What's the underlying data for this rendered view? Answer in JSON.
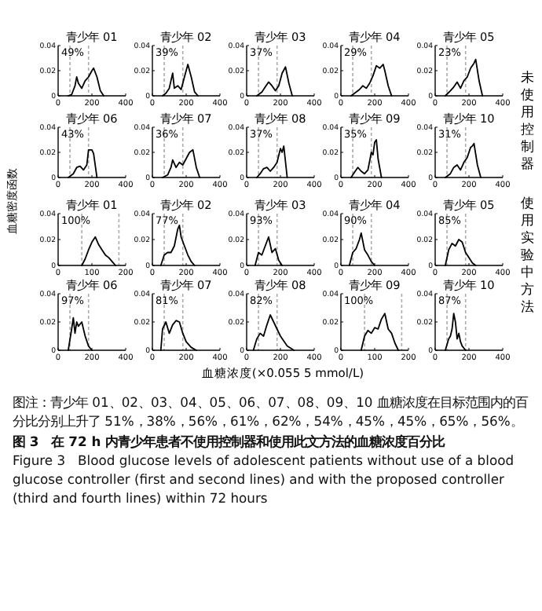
{
  "chart_data": [
    {
      "type": "line",
      "title": "青少年 01",
      "xlim": [
        0,
        400
      ],
      "xticks": [
        0,
        200,
        400
      ],
      "ylim": [
        0,
        0.04
      ],
      "yticks": [
        0,
        0.02,
        0.04
      ],
      "ref_lines": [
        {
          "axis": "x",
          "value": 70,
          "color": "#aaaaaa",
          "line_style": "dashed"
        },
        {
          "axis": "x",
          "value": 180,
          "color": "#aaaaaa",
          "line_style": "dashed"
        }
      ],
      "annotations": [
        "49%"
      ],
      "series": [
        {
          "color": "#000000",
          "x": [
            60,
            80,
            100,
            110,
            120,
            140,
            160,
            180,
            200,
            210,
            230,
            250,
            270
          ],
          "values": [
            0,
            0.001,
            0.008,
            0.015,
            0.01,
            0.006,
            0.012,
            0.015,
            0.02,
            0.022,
            0.015,
            0.004,
            0
          ]
        }
      ]
    },
    {
      "type": "line",
      "title": "青少年 02",
      "xlim": [
        0,
        400
      ],
      "xticks": [
        0,
        200,
        400
      ],
      "ylim": [
        0,
        0.04
      ],
      "yticks": [
        0,
        0.02,
        0.04
      ],
      "ref_lines": [
        {
          "axis": "x",
          "value": 70,
          "color": "#aaaaaa",
          "line_style": "dashed"
        },
        {
          "axis": "x",
          "value": 180,
          "color": "#aaaaaa",
          "line_style": "dashed"
        }
      ],
      "annotations": [
        "39%"
      ],
      "series": [
        {
          "color": "#000000",
          "x": [
            60,
            80,
            100,
            120,
            130,
            150,
            170,
            190,
            210,
            230,
            250,
            270
          ],
          "values": [
            0,
            0.002,
            0.006,
            0.018,
            0.006,
            0.008,
            0.005,
            0.015,
            0.025,
            0.015,
            0.003,
            0
          ]
        }
      ]
    },
    {
      "type": "line",
      "title": "青少年 03",
      "xlim": [
        0,
        400
      ],
      "xticks": [
        0,
        200,
        400
      ],
      "ylim": [
        0,
        0.04
      ],
      "yticks": [
        0,
        0.02,
        0.04
      ],
      "ref_lines": [
        {
          "axis": "x",
          "value": 70,
          "color": "#aaaaaa",
          "line_style": "dashed"
        },
        {
          "axis": "x",
          "value": 180,
          "color": "#aaaaaa",
          "line_style": "dashed"
        }
      ],
      "annotations": [
        "37%"
      ],
      "series": [
        {
          "color": "#000000",
          "x": [
            60,
            90,
            110,
            130,
            150,
            170,
            190,
            210,
            230,
            250,
            270
          ],
          "values": [
            0,
            0.003,
            0.007,
            0.011,
            0.008,
            0.004,
            0.008,
            0.018,
            0.023,
            0.01,
            0
          ]
        }
      ]
    },
    {
      "type": "line",
      "title": "青少年 04",
      "xlim": [
        0,
        400
      ],
      "xticks": [
        0,
        200,
        400
      ],
      "ylim": [
        0,
        0.04
      ],
      "yticks": [
        0,
        0.02,
        0.04
      ],
      "ref_lines": [
        {
          "axis": "x",
          "value": 70,
          "color": "#aaaaaa",
          "line_style": "dashed"
        },
        {
          "axis": "x",
          "value": 180,
          "color": "#aaaaaa",
          "line_style": "dashed"
        }
      ],
      "annotations": [
        "29%"
      ],
      "series": [
        {
          "color": "#000000",
          "x": [
            60,
            90,
            110,
            130,
            150,
            170,
            190,
            210,
            230,
            250,
            260,
            280,
            300
          ],
          "values": [
            0,
            0.003,
            0.005,
            0.008,
            0.006,
            0.01,
            0.016,
            0.024,
            0.022,
            0.025,
            0.02,
            0.008,
            0
          ]
        }
      ]
    },
    {
      "type": "line",
      "title": "青少年 05",
      "xlim": [
        0,
        400
      ],
      "xticks": [
        0,
        200,
        400
      ],
      "ylim": [
        0,
        0.04
      ],
      "yticks": [
        0,
        0.02,
        0.04
      ],
      "ref_lines": [
        {
          "axis": "x",
          "value": 70,
          "color": "#aaaaaa",
          "line_style": "dashed"
        },
        {
          "axis": "x",
          "value": 180,
          "color": "#aaaaaa",
          "line_style": "dashed"
        }
      ],
      "annotations": [
        "23%"
      ],
      "series": [
        {
          "color": "#000000",
          "x": [
            60,
            90,
            110,
            130,
            150,
            170,
            190,
            210,
            230,
            240,
            260,
            280
          ],
          "values": [
            0,
            0.004,
            0.007,
            0.011,
            0.006,
            0.012,
            0.015,
            0.022,
            0.026,
            0.029,
            0.012,
            0
          ]
        }
      ]
    },
    {
      "type": "line",
      "title": "青少年 06",
      "xlim": [
        0,
        400
      ],
      "xticks": [
        0,
        200,
        400
      ],
      "ylim": [
        0,
        0.04
      ],
      "yticks": [
        0,
        0.02,
        0.04
      ],
      "ref_lines": [
        {
          "axis": "x",
          "value": 70,
          "color": "#aaaaaa",
          "line_style": "dashed"
        },
        {
          "axis": "x",
          "value": 180,
          "color": "#aaaaaa",
          "line_style": "dashed"
        }
      ],
      "annotations": [
        "43%"
      ],
      "series": [
        {
          "color": "#000000",
          "x": [
            60,
            90,
            110,
            130,
            150,
            170,
            180,
            200,
            210,
            230
          ],
          "values": [
            0,
            0.003,
            0.008,
            0.009,
            0.006,
            0.01,
            0.022,
            0.022,
            0.019,
            0
          ]
        }
      ]
    },
    {
      "type": "line",
      "title": "青少年 07",
      "xlim": [
        0,
        400
      ],
      "xticks": [
        0,
        200,
        400
      ],
      "ylim": [
        0,
        0.04
      ],
      "yticks": [
        0,
        0.02,
        0.04
      ],
      "ref_lines": [
        {
          "axis": "x",
          "value": 70,
          "color": "#aaaaaa",
          "line_style": "dashed"
        },
        {
          "axis": "x",
          "value": 180,
          "color": "#aaaaaa",
          "line_style": "dashed"
        }
      ],
      "annotations": [
        "36%"
      ],
      "series": [
        {
          "color": "#000000",
          "x": [
            60,
            90,
            110,
            120,
            140,
            160,
            180,
            200,
            220,
            240,
            260,
            280
          ],
          "values": [
            0,
            0.002,
            0.008,
            0.014,
            0.008,
            0.012,
            0.01,
            0.015,
            0.02,
            0.022,
            0.008,
            0
          ]
        }
      ]
    },
    {
      "type": "line",
      "title": "青少年 08",
      "xlim": [
        0,
        400
      ],
      "xticks": [
        0,
        200,
        400
      ],
      "ylim": [
        0,
        0.04
      ],
      "yticks": [
        0,
        0.02,
        0.04
      ],
      "ref_lines": [
        {
          "axis": "x",
          "value": 70,
          "color": "#aaaaaa",
          "line_style": "dashed"
        },
        {
          "axis": "x",
          "value": 180,
          "color": "#aaaaaa",
          "line_style": "dashed"
        }
      ],
      "annotations": [
        "37%"
      ],
      "series": [
        {
          "color": "#000000",
          "x": [
            60,
            80,
            100,
            120,
            140,
            160,
            180,
            200,
            210,
            220,
            240
          ],
          "values": [
            0,
            0.003,
            0.007,
            0.008,
            0.005,
            0.008,
            0.012,
            0.023,
            0.02,
            0.025,
            0
          ]
        }
      ]
    },
    {
      "type": "line",
      "title": "青少年 09",
      "xlim": [
        0,
        400
      ],
      "xticks": [
        0,
        200,
        400
      ],
      "ylim": [
        0,
        0.04
      ],
      "yticks": [
        0,
        0.02,
        0.04
      ],
      "ref_lines": [
        {
          "axis": "x",
          "value": 70,
          "color": "#aaaaaa",
          "line_style": "dashed"
        },
        {
          "axis": "x",
          "value": 180,
          "color": "#aaaaaa",
          "line_style": "dashed"
        }
      ],
      "annotations": [
        "35%"
      ],
      "series": [
        {
          "color": "#000000",
          "x": [
            60,
            80,
            100,
            120,
            140,
            160,
            180,
            190,
            200,
            210,
            220,
            240
          ],
          "values": [
            0,
            0.004,
            0.008,
            0.005,
            0.003,
            0.006,
            0.02,
            0.018,
            0.028,
            0.03,
            0.015,
            0
          ]
        }
      ]
    },
    {
      "type": "line",
      "title": "青少年 10",
      "xlim": [
        0,
        400
      ],
      "xticks": [
        0,
        200,
        400
      ],
      "ylim": [
        0,
        0.04
      ],
      "yticks": [
        0,
        0.02,
        0.04
      ],
      "ref_lines": [
        {
          "axis": "x",
          "value": 70,
          "color": "#aaaaaa",
          "line_style": "dashed"
        },
        {
          "axis": "x",
          "value": 180,
          "color": "#aaaaaa",
          "line_style": "dashed"
        }
      ],
      "annotations": [
        "31%"
      ],
      "series": [
        {
          "color": "#000000",
          "x": [
            60,
            90,
            110,
            130,
            150,
            170,
            190,
            210,
            220,
            230,
            250,
            270
          ],
          "values": [
            0,
            0.003,
            0.008,
            0.01,
            0.006,
            0.012,
            0.016,
            0.024,
            0.025,
            0.027,
            0.01,
            0
          ]
        }
      ]
    },
    {
      "type": "line",
      "title": "青少年 01",
      "xlim": [
        0,
        200
      ],
      "xticks": [
        0,
        100,
        200
      ],
      "ylim": [
        0,
        0.04
      ],
      "yticks": [
        0,
        0.02,
        0.04
      ],
      "ref_lines": [
        {
          "axis": "x",
          "value": 70,
          "color": "#aaaaaa",
          "line_style": "dashed"
        },
        {
          "axis": "x",
          "value": 180,
          "color": "#aaaaaa",
          "line_style": "dashed"
        }
      ],
      "annotations": [
        "100%"
      ],
      "series": [
        {
          "color": "#000000",
          "x": [
            70,
            80,
            90,
            100,
            110,
            120,
            130,
            140,
            150,
            160,
            170
          ],
          "values": [
            0,
            0.005,
            0.012,
            0.018,
            0.022,
            0.016,
            0.012,
            0.008,
            0.006,
            0.003,
            0
          ]
        }
      ]
    },
    {
      "type": "line",
      "title": "青少年 02",
      "xlim": [
        0,
        400
      ],
      "xticks": [
        0,
        200,
        400
      ],
      "ylim": [
        0,
        0.04
      ],
      "yticks": [
        0,
        0.02,
        0.04
      ],
      "ref_lines": [
        {
          "axis": "x",
          "value": 70,
          "color": "#aaaaaa",
          "line_style": "dashed"
        },
        {
          "axis": "x",
          "value": 180,
          "color": "#aaaaaa",
          "line_style": "dashed"
        }
      ],
      "annotations": [
        "77%"
      ],
      "series": [
        {
          "color": "#000000",
          "x": [
            50,
            70,
            90,
            110,
            130,
            150,
            160,
            170,
            190,
            210,
            230,
            250
          ],
          "values": [
            0,
            0.008,
            0.01,
            0.01,
            0.015,
            0.028,
            0.031,
            0.022,
            0.015,
            0.008,
            0.003,
            0
          ]
        }
      ]
    },
    {
      "type": "line",
      "title": "青少年 03",
      "xlim": [
        0,
        400
      ],
      "xticks": [
        0,
        200,
        400
      ],
      "ylim": [
        0,
        0.04
      ],
      "yticks": [
        0,
        0.02,
        0.04
      ],
      "ref_lines": [
        {
          "axis": "x",
          "value": 70,
          "color": "#aaaaaa",
          "line_style": "dashed"
        },
        {
          "axis": "x",
          "value": 180,
          "color": "#aaaaaa",
          "line_style": "dashed"
        }
      ],
      "annotations": [
        "93%"
      ],
      "series": [
        {
          "color": "#000000",
          "x": [
            50,
            70,
            90,
            110,
            130,
            150,
            170,
            190,
            210
          ],
          "values": [
            0,
            0.01,
            0.008,
            0.015,
            0.022,
            0.01,
            0.013,
            0.004,
            0
          ]
        }
      ]
    },
    {
      "type": "line",
      "title": "青少年 04",
      "xlim": [
        0,
        400
      ],
      "xticks": [
        0,
        200,
        400
      ],
      "ylim": [
        0,
        0.04
      ],
      "yticks": [
        0,
        0.02,
        0.04
      ],
      "ref_lines": [
        {
          "axis": "x",
          "value": 70,
          "color": "#aaaaaa",
          "line_style": "dashed"
        },
        {
          "axis": "x",
          "value": 180,
          "color": "#aaaaaa",
          "line_style": "dashed"
        }
      ],
      "annotations": [
        "90%"
      ],
      "series": [
        {
          "color": "#000000",
          "x": [
            50,
            70,
            90,
            110,
            120,
            140,
            160,
            180,
            200
          ],
          "values": [
            0,
            0.01,
            0.013,
            0.02,
            0.025,
            0.012,
            0.008,
            0.003,
            0
          ]
        }
      ]
    },
    {
      "type": "line",
      "title": "青少年 05",
      "xlim": [
        0,
        400
      ],
      "xticks": [
        0,
        200,
        400
      ],
      "ylim": [
        0,
        0.04
      ],
      "yticks": [
        0,
        0.02,
        0.04
      ],
      "ref_lines": [
        {
          "axis": "x",
          "value": 70,
          "color": "#aaaaaa",
          "line_style": "dashed"
        },
        {
          "axis": "x",
          "value": 180,
          "color": "#aaaaaa",
          "line_style": "dashed"
        }
      ],
      "annotations": [
        "85%"
      ],
      "series": [
        {
          "color": "#000000",
          "x": [
            60,
            80,
            100,
            120,
            140,
            160,
            180,
            200,
            220,
            240
          ],
          "values": [
            0,
            0.012,
            0.017,
            0.015,
            0.02,
            0.018,
            0.01,
            0.006,
            0.002,
            0
          ]
        }
      ]
    },
    {
      "type": "line",
      "title": "青少年 06",
      "xlim": [
        0,
        400
      ],
      "xticks": [
        0,
        200,
        400
      ],
      "ylim": [
        0,
        0.04
      ],
      "yticks": [
        0,
        0.02,
        0.04
      ],
      "ref_lines": [
        {
          "axis": "x",
          "value": 70,
          "color": "#aaaaaa",
          "line_style": "dashed"
        },
        {
          "axis": "x",
          "value": 180,
          "color": "#aaaaaa",
          "line_style": "dashed"
        }
      ],
      "annotations": [
        "97%"
      ],
      "series": [
        {
          "color": "#000000",
          "x": [
            60,
            80,
            90,
            100,
            110,
            120,
            140,
            160,
            180,
            200
          ],
          "values": [
            0,
            0.015,
            0.023,
            0.012,
            0.02,
            0.017,
            0.02,
            0.01,
            0.003,
            0
          ]
        }
      ]
    },
    {
      "type": "line",
      "title": "青少年 07",
      "xlim": [
        0,
        400
      ],
      "xticks": [
        0,
        200,
        400
      ],
      "ylim": [
        0,
        0.04
      ],
      "yticks": [
        0,
        0.02,
        0.04
      ],
      "ref_lines": [
        {
          "axis": "x",
          "value": 70,
          "color": "#aaaaaa",
          "line_style": "dashed"
        },
        {
          "axis": "x",
          "value": 180,
          "color": "#aaaaaa",
          "line_style": "dashed"
        }
      ],
      "annotations": [
        "81%"
      ],
      "series": [
        {
          "color": "#000000",
          "x": [
            50,
            60,
            80,
            100,
            120,
            140,
            160,
            180,
            200,
            230,
            260
          ],
          "values": [
            0,
            0.015,
            0.02,
            0.012,
            0.018,
            0.021,
            0.02,
            0.012,
            0.006,
            0.002,
            0
          ]
        }
      ]
    },
    {
      "type": "line",
      "title": "青少年 08",
      "xlim": [
        0,
        400
      ],
      "xticks": [
        0,
        200,
        400
      ],
      "ylim": [
        0,
        0.04
      ],
      "yticks": [
        0,
        0.02,
        0.04
      ],
      "ref_lines": [
        {
          "axis": "x",
          "value": 70,
          "color": "#aaaaaa",
          "line_style": "dashed"
        },
        {
          "axis": "x",
          "value": 180,
          "color": "#aaaaaa",
          "line_style": "dashed"
        }
      ],
      "annotations": [
        "82%"
      ],
      "series": [
        {
          "color": "#000000",
          "x": [
            40,
            60,
            80,
            100,
            120,
            140,
            160,
            180,
            200,
            240,
            280
          ],
          "values": [
            0,
            0.008,
            0.012,
            0.01,
            0.018,
            0.025,
            0.02,
            0.015,
            0.01,
            0.003,
            0
          ]
        }
      ]
    },
    {
      "type": "line",
      "title": "青少年 09",
      "xlim": [
        0,
        200
      ],
      "xticks": [
        0,
        100,
        200
      ],
      "ylim": [
        0,
        0.04
      ],
      "yticks": [
        0,
        0.02,
        0.04
      ],
      "ref_lines": [
        {
          "axis": "x",
          "value": 70,
          "color": "#aaaaaa",
          "line_style": "dashed"
        },
        {
          "axis": "x",
          "value": 180,
          "color": "#aaaaaa",
          "line_style": "dashed"
        }
      ],
      "annotations": [
        "100%"
      ],
      "series": [
        {
          "color": "#000000",
          "x": [
            60,
            70,
            80,
            90,
            100,
            110,
            120,
            130,
            140,
            150,
            160,
            170
          ],
          "values": [
            0,
            0.01,
            0.014,
            0.012,
            0.016,
            0.015,
            0.022,
            0.026,
            0.015,
            0.012,
            0.005,
            0
          ]
        }
      ]
    },
    {
      "type": "line",
      "title": "青少年 10",
      "xlim": [
        0,
        400
      ],
      "xticks": [
        0,
        200,
        400
      ],
      "ylim": [
        0,
        0.04
      ],
      "yticks": [
        0,
        0.02,
        0.04
      ],
      "ref_lines": [
        {
          "axis": "x",
          "value": 70,
          "color": "#aaaaaa",
          "line_style": "dashed"
        },
        {
          "axis": "x",
          "value": 180,
          "color": "#aaaaaa",
          "line_style": "dashed"
        }
      ],
      "annotations": [
        "87%"
      ],
      "series": [
        {
          "color": "#000000",
          "x": [
            60,
            80,
            90,
            100,
            110,
            120,
            130,
            140,
            150,
            160,
            180
          ],
          "values": [
            0,
            0.008,
            0.01,
            0.015,
            0.026,
            0.02,
            0.008,
            0.012,
            0.006,
            0.003,
            0
          ]
        }
      ]
    },
    {
      "type": "other",
      "xlabel": "血糖浓度(×0.055 5 mmol/L)",
      "ylabel": "血糖密度函数",
      "annotations": [
        "未使用控制器",
        "使用实验中方法",
        "图注：青少年 01、02、03、04、05、06、07、08、09、10 血糖浓度在目标范围内的百分比分别上升了 51%，38%，56%，61%，62%，54%，45%，45%，65%，56%。",
        "图 3　在 72 h 内青少年患者不使用控制器和使用此文方法的血糖浓度百分比",
        "Figure 3　Blood glucose levels of adolescent patients without use of a blood glucose controller (first and second lines) and with the proposed controller (third and fourth lines) within 72 hours"
      ]
    }
  ]
}
